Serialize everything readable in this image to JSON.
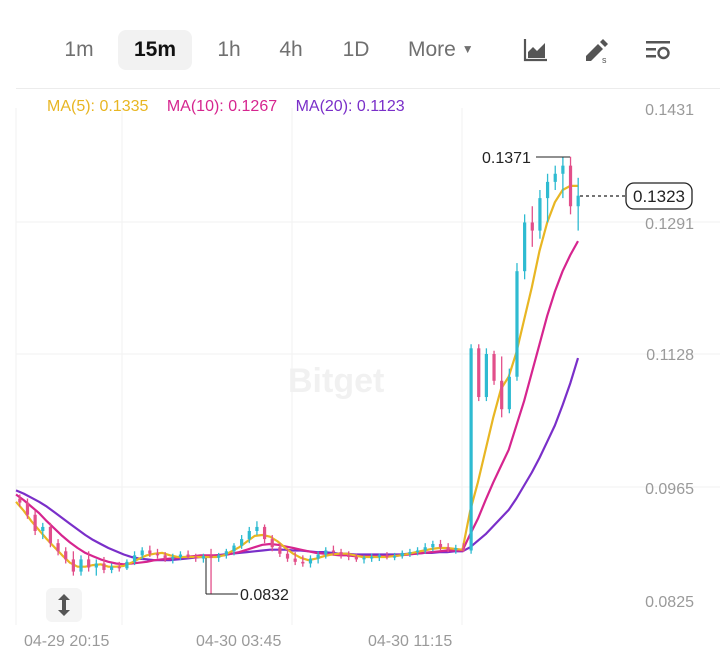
{
  "toolbar": {
    "timeframes": [
      "1m",
      "15m",
      "1h",
      "4h",
      "1D"
    ],
    "active_timeframe": "15m",
    "more_label": "More",
    "icons": [
      "chart-type-icon",
      "drawing-tools-icon",
      "indicator-settings-icon"
    ]
  },
  "legend": {
    "ma5": "MA(5): 0.1335",
    "ma10": "MA(10): 0.1267",
    "ma20": "MA(20): 0.1123"
  },
  "watermark": "Bitget",
  "colors": {
    "up": "#2ebbd1",
    "down": "#e24f8a",
    "ma5": "#e8b623",
    "ma10": "#d6258f",
    "ma20": "#7a2fc9",
    "axis_text": "#9a9a9a"
  },
  "chart_data": {
    "type": "candlestick",
    "y_ticks": [
      "0.1431",
      "0.1291",
      "0.1128",
      "0.0965",
      "0.0825"
    ],
    "x_ticks": [
      "04-29 20:15",
      "04-30 03:45",
      "04-30 11:15"
    ],
    "ylim": [
      0.0825,
      0.1431
    ],
    "grid": true,
    "last_price": "0.1323",
    "high_annotation": "0.1371",
    "low_annotation": "0.0832",
    "candles": [
      [
        0.095,
        0.0955,
        0.094,
        0.0945
      ],
      [
        0.0945,
        0.095,
        0.0925,
        0.093
      ],
      [
        0.093,
        0.0935,
        0.0905,
        0.091
      ],
      [
        0.091,
        0.092,
        0.09,
        0.0915
      ],
      [
        0.0915,
        0.092,
        0.089,
        0.0895
      ],
      [
        0.0895,
        0.09,
        0.088,
        0.0885
      ],
      [
        0.0885,
        0.089,
        0.087,
        0.0875
      ],
      [
        0.0875,
        0.0885,
        0.0855,
        0.086
      ],
      [
        0.086,
        0.088,
        0.0855,
        0.0875
      ],
      [
        0.0875,
        0.0885,
        0.086,
        0.0865
      ],
      [
        0.0865,
        0.0875,
        0.0855,
        0.087
      ],
      [
        0.087,
        0.0878,
        0.0858,
        0.0862
      ],
      [
        0.0862,
        0.087,
        0.0858,
        0.0866
      ],
      [
        0.0866,
        0.0872,
        0.086,
        0.0864
      ],
      [
        0.0864,
        0.0875,
        0.0862,
        0.0872
      ],
      [
        0.0872,
        0.0885,
        0.0868,
        0.088
      ],
      [
        0.088,
        0.089,
        0.0875,
        0.0886
      ],
      [
        0.0886,
        0.0892,
        0.0878,
        0.0882
      ],
      [
        0.0882,
        0.0888,
        0.0876,
        0.088
      ],
      [
        0.088,
        0.0884,
        0.0872,
        0.0876
      ],
      [
        0.0876,
        0.0882,
        0.087,
        0.0878
      ],
      [
        0.0878,
        0.0885,
        0.0874,
        0.0881
      ],
      [
        0.0881,
        0.0886,
        0.0876,
        0.0878
      ],
      [
        0.0878,
        0.0882,
        0.0872,
        0.0876
      ],
      [
        0.0876,
        0.0882,
        0.0871,
        0.0879
      ],
      [
        0.0879,
        0.0888,
        0.0832,
        0.0877
      ],
      [
        0.0877,
        0.0883,
        0.0872,
        0.088
      ],
      [
        0.088,
        0.0888,
        0.0876,
        0.0885
      ],
      [
        0.0885,
        0.0895,
        0.088,
        0.0892
      ],
      [
        0.0892,
        0.0905,
        0.0888,
        0.09
      ],
      [
        0.09,
        0.0915,
        0.0895,
        0.091
      ],
      [
        0.091,
        0.0922,
        0.0905,
        0.0915
      ],
      [
        0.0915,
        0.0918,
        0.0895,
        0.09
      ],
      [
        0.09,
        0.0905,
        0.0885,
        0.089
      ],
      [
        0.089,
        0.0895,
        0.0878,
        0.0882
      ],
      [
        0.0882,
        0.0888,
        0.0872,
        0.0876
      ],
      [
        0.0876,
        0.0884,
        0.0868,
        0.0872
      ],
      [
        0.0872,
        0.088,
        0.0866,
        0.087
      ],
      [
        0.087,
        0.088,
        0.0865,
        0.0876
      ],
      [
        0.0876,
        0.0885,
        0.087,
        0.0881
      ],
      [
        0.0881,
        0.089,
        0.0876,
        0.0886
      ],
      [
        0.0886,
        0.0892,
        0.088,
        0.0884
      ],
      [
        0.0884,
        0.0888,
        0.0876,
        0.088
      ],
      [
        0.088,
        0.0885,
        0.0874,
        0.0878
      ],
      [
        0.0878,
        0.0882,
        0.0872,
        0.0875
      ],
      [
        0.0875,
        0.088,
        0.087,
        0.0877
      ],
      [
        0.0877,
        0.0882,
        0.0872,
        0.0878
      ],
      [
        0.0878,
        0.0882,
        0.0873,
        0.088
      ],
      [
        0.088,
        0.0884,
        0.0875,
        0.0878
      ],
      [
        0.0878,
        0.0883,
        0.0874,
        0.0879
      ],
      [
        0.0879,
        0.0886,
        0.0876,
        0.0883
      ],
      [
        0.0883,
        0.0888,
        0.0878,
        0.0884
      ],
      [
        0.0884,
        0.089,
        0.088,
        0.0886
      ],
      [
        0.0886,
        0.0895,
        0.0882,
        0.089
      ],
      [
        0.089,
        0.0898,
        0.0885,
        0.0894
      ],
      [
        0.0894,
        0.0899,
        0.0886,
        0.089
      ],
      [
        0.089,
        0.0895,
        0.0884,
        0.0887
      ],
      [
        0.0887,
        0.0893,
        0.0882,
        0.0889
      ],
      [
        0.0889,
        0.0895,
        0.0884,
        0.0886
      ],
      [
        0.0886,
        0.114,
        0.0882,
        0.1135
      ],
      [
        0.1135,
        0.114,
        0.107,
        0.1075
      ],
      [
        0.1075,
        0.1135,
        0.107,
        0.1128
      ],
      [
        0.1128,
        0.1132,
        0.109,
        0.1095
      ],
      [
        0.1095,
        0.1125,
        0.105,
        0.106
      ],
      [
        0.106,
        0.111,
        0.1055,
        0.11
      ],
      [
        0.11,
        0.124,
        0.1095,
        0.123
      ],
      [
        0.123,
        0.13,
        0.122,
        0.129
      ],
      [
        0.129,
        0.131,
        0.126,
        0.128
      ],
      [
        0.128,
        0.133,
        0.127,
        0.132
      ],
      [
        0.132,
        0.135,
        0.129,
        0.134
      ],
      [
        0.134,
        0.136,
        0.133,
        0.135
      ],
      [
        0.135,
        0.1371,
        0.132,
        0.136
      ],
      [
        0.136,
        0.1371,
        0.13,
        0.131
      ],
      [
        0.131,
        0.1345,
        0.128,
        0.1323
      ]
    ],
    "ma5": [
      0.0946,
      0.0935,
      0.0922,
      0.0911,
      0.09,
      0.089,
      0.088,
      0.0871,
      0.0866,
      0.0866,
      0.0868,
      0.0869,
      0.0866,
      0.0866,
      0.0867,
      0.0871,
      0.0876,
      0.088,
      0.0882,
      0.0883,
      0.088,
      0.0878,
      0.0878,
      0.0878,
      0.0878,
      0.0878,
      0.0878,
      0.088,
      0.0885,
      0.089,
      0.0897,
      0.0904,
      0.0905,
      0.0903,
      0.0897,
      0.0889,
      0.0882,
      0.0877,
      0.0874,
      0.0876,
      0.0879,
      0.0881,
      0.0882,
      0.0882,
      0.088,
      0.0878,
      0.0878,
      0.0878,
      0.0878,
      0.0879,
      0.088,
      0.0882,
      0.0884,
      0.0886,
      0.0888,
      0.0889,
      0.0889,
      0.0888,
      0.0887,
      0.0935,
      0.097,
      0.101,
      0.105,
      0.1085,
      0.11,
      0.113,
      0.117,
      0.121,
      0.1255,
      0.129,
      0.1315,
      0.133,
      0.1335,
      0.1335
    ],
    "ma10": [
      0.0955,
      0.0948,
      0.094,
      0.0932,
      0.0922,
      0.0913,
      0.0904,
      0.0896,
      0.0889,
      0.0883,
      0.0879,
      0.0875,
      0.0872,
      0.087,
      0.0869,
      0.087,
      0.0871,
      0.0872,
      0.0874,
      0.0875,
      0.0876,
      0.0877,
      0.0878,
      0.0879,
      0.088,
      0.088,
      0.088,
      0.088,
      0.0882,
      0.0884,
      0.0887,
      0.089,
      0.0893,
      0.0894,
      0.0893,
      0.0891,
      0.0889,
      0.0887,
      0.0885,
      0.0883,
      0.0882,
      0.0881,
      0.088,
      0.088,
      0.0879,
      0.0879,
      0.0879,
      0.0879,
      0.0879,
      0.0879,
      0.088,
      0.0881,
      0.0882,
      0.0883,
      0.0884,
      0.0885,
      0.0886,
      0.0886,
      0.0886,
      0.0906,
      0.0925,
      0.0948,
      0.097,
      0.099,
      0.101,
      0.104,
      0.107,
      0.1105,
      0.114,
      0.1175,
      0.1205,
      0.123,
      0.125,
      0.1267
    ],
    "ma20": [
      0.096,
      0.0956,
      0.0951,
      0.0946,
      0.094,
      0.0933,
      0.0926,
      0.0919,
      0.0912,
      0.0905,
      0.0899,
      0.0894,
      0.0889,
      0.0885,
      0.0881,
      0.0878,
      0.0876,
      0.0875,
      0.0874,
      0.0874,
      0.0874,
      0.0875,
      0.0876,
      0.0877,
      0.0878,
      0.0879,
      0.088,
      0.0881,
      0.0882,
      0.0883,
      0.0884,
      0.0885,
      0.0886,
      0.0887,
      0.0887,
      0.0887,
      0.0886,
      0.0886,
      0.0885,
      0.0884,
      0.0884,
      0.0883,
      0.0882,
      0.0882,
      0.0881,
      0.0881,
      0.0881,
      0.0881,
      0.0881,
      0.0881,
      0.0881,
      0.0882,
      0.0882,
      0.0883,
      0.0883,
      0.0884,
      0.0884,
      0.0885,
      0.0885,
      0.089,
      0.0898,
      0.0906,
      0.0916,
      0.0926,
      0.0936,
      0.095,
      0.0966,
      0.0982,
      0.1,
      0.102,
      0.104,
      0.1065,
      0.1092,
      0.1123
    ]
  }
}
